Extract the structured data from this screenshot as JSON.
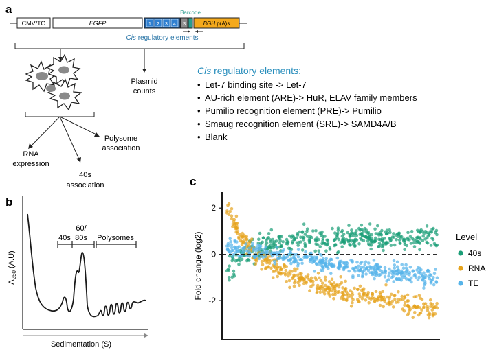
{
  "panels": {
    "a": "a",
    "b": "b",
    "c": "c"
  },
  "plasmid": {
    "promoter": "CMV/TO",
    "reporter": "EGFP",
    "barcode_label": "Barcode",
    "sites": [
      "1",
      "2",
      "3",
      "4"
    ],
    "s_label": "S",
    "polya_label_italic": "BGH",
    "polya_label_rest": " p(A)s",
    "cis_label_italic": "Cis",
    "cis_label_rest": " regulatory elements"
  },
  "cells": {
    "plasmid_counts": [
      "Plasmid",
      "counts"
    ],
    "rna_expression": [
      "RNA",
      "expression"
    ],
    "polysome_association": [
      "Polysome",
      "association"
    ],
    "s40_association": [
      "40s",
      "association"
    ]
  },
  "cis_list": {
    "title_italic": "Cis",
    "title_rest": " regulatory elements:",
    "items": [
      "Let-7 binding site -> Let-7",
      "AU-rich element (ARE)-> HuR, ELAV family members",
      "Pumilio recognition element (PRE)-> Pumilio",
      "Smaug recognition element (SRE)-> SAMD4A/B",
      "Blank"
    ]
  },
  "profile": {
    "ylabel_main": "A",
    "ylabel_sub": "250",
    "ylabel_unit": " (A.U)",
    "xlabel": "Sedimentation (S)",
    "label_40s": "40s",
    "label_6080_top": "60/",
    "label_6080_bottom": "80s",
    "label_polysomes": "Polysomes"
  },
  "chart_data": {
    "type": "scatter",
    "ylabel": "Fold change (log2)",
    "xlabel": "",
    "ylim": [
      -3.6,
      2.6
    ],
    "yticks": [
      2,
      0,
      -2
    ],
    "reference_line": 0,
    "legend_title": "Level",
    "legend_position": "right",
    "series": [
      {
        "name": "40s",
        "color": "#1b9e77",
        "trend": [
          [
            0,
            -0.7
          ],
          [
            0.05,
            -0.2
          ],
          [
            0.15,
            0.35
          ],
          [
            0.35,
            0.65
          ],
          [
            1,
            0.75
          ]
        ],
        "spread": 0.35
      },
      {
        "name": "RNA",
        "color": "#e6a31c",
        "trend": [
          [
            0,
            2.2
          ],
          [
            0.05,
            1.0
          ],
          [
            0.12,
            0.05
          ],
          [
            0.3,
            -0.9
          ],
          [
            0.55,
            -1.6
          ],
          [
            1,
            -2.4
          ]
        ],
        "spread": 0.32
      },
      {
        "name": "TE",
        "color": "#56b4e9",
        "trend": [
          [
            0,
            0.25
          ],
          [
            0.2,
            0.05
          ],
          [
            0.5,
            -0.45
          ],
          [
            1,
            -1.0
          ]
        ],
        "spread": 0.25
      }
    ]
  }
}
